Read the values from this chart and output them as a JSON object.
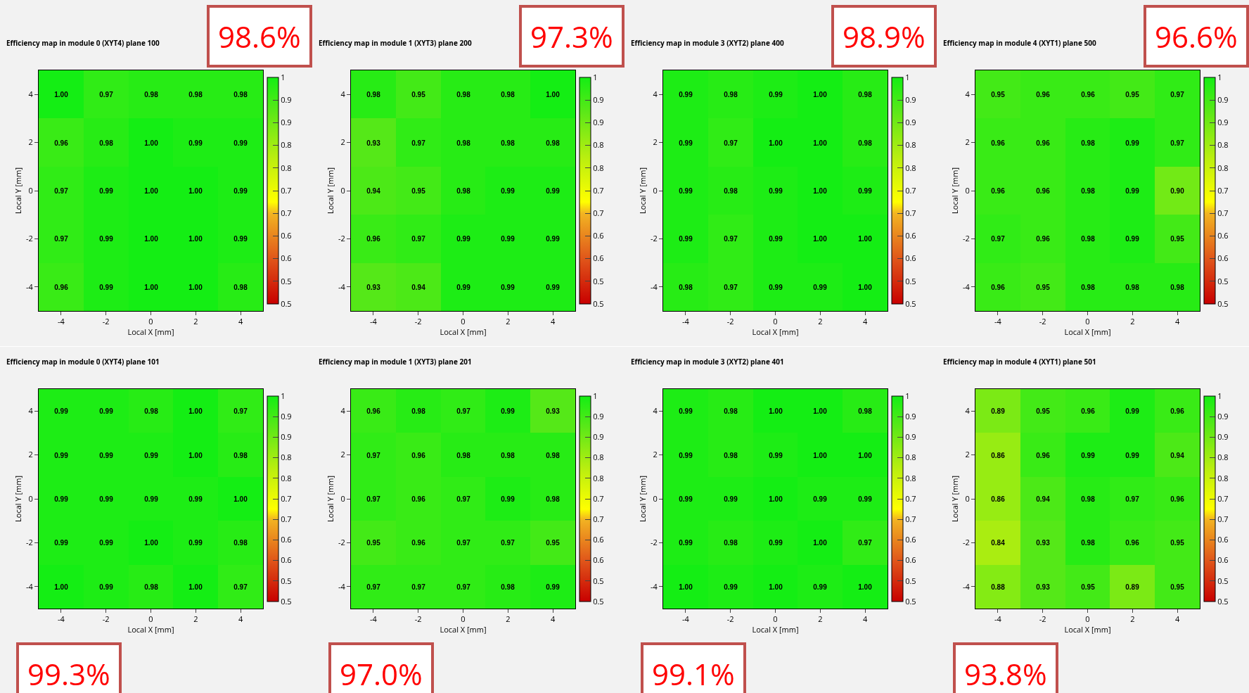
{
  "chart_data": [
    {
      "type": "heatmap",
      "title": "Efficiency map in module 0 (XYT4) plane 100",
      "xlabel": "Local X [mm]",
      "ylabel": "Local Y [mm]",
      "annotations": [
        "98.6%"
      ],
      "categories": [
        "-4",
        "-2",
        "0",
        "2",
        "4"
      ],
      "y_categories": [
        "4",
        "2",
        "0",
        "-2",
        "-4"
      ],
      "cells": [
        [
          1.0,
          0.97,
          0.98,
          0.98,
          0.98
        ],
        [
          0.96,
          0.98,
          1.0,
          0.99,
          0.99
        ],
        [
          0.97,
          0.99,
          1.0,
          1.0,
          0.99
        ],
        [
          0.97,
          0.99,
          1.0,
          1.0,
          0.99
        ],
        [
          0.96,
          0.99,
          1.0,
          1.0,
          0.98
        ]
      ],
      "cell_labels": [
        [
          "1.00",
          "0.97",
          "0.98",
          "0.98",
          "0.98"
        ],
        [
          "0.96",
          "0.98",
          "1.00",
          "0.99",
          "0.99"
        ],
        [
          "0.97",
          "0.99",
          "1.00",
          "1.00",
          "0.99"
        ],
        [
          "0.97",
          "0.99",
          "1.00",
          "1.00",
          "0.99"
        ],
        [
          "0.96",
          "0.99",
          "1.00",
          "1.00",
          "0.98"
        ]
      ],
      "clim": [
        0.5,
        1
      ],
      "cticks": [
        {
          "value": 0.5,
          "label": "0.5"
        },
        {
          "value": 0.55,
          "label": "0.5"
        },
        {
          "value": 0.6,
          "label": "0.6"
        },
        {
          "value": 0.65,
          "label": "0.6"
        },
        {
          "value": 0.7,
          "label": "0.7"
        },
        {
          "value": 0.75,
          "label": "0.7"
        },
        {
          "value": 0.8,
          "label": "0.8"
        },
        {
          "value": 0.85,
          "label": "0.8"
        },
        {
          "value": 0.9,
          "label": "0.9"
        },
        {
          "value": 0.95,
          "label": "0.9"
        },
        {
          "value": 1,
          "label": "1"
        }
      ]
    },
    {
      "type": "heatmap",
      "title": "Efficiency map in module 1 (XYT3) plane 200",
      "xlabel": "Local X [mm]",
      "ylabel": "Local Y [mm]",
      "annotations": [
        "97.3%"
      ],
      "categories": [
        "-4",
        "-2",
        "0",
        "2",
        "4"
      ],
      "y_categories": [
        "4",
        "2",
        "0",
        "-2",
        "-4"
      ],
      "cells": [
        [
          0.98,
          0.95,
          0.98,
          0.98,
          1.0
        ],
        [
          0.93,
          0.97,
          0.98,
          0.98,
          0.98
        ],
        [
          0.94,
          0.95,
          0.98,
          0.99,
          0.99
        ],
        [
          0.96,
          0.97,
          0.99,
          0.99,
          0.99
        ],
        [
          0.93,
          0.94,
          0.99,
          0.99,
          0.99
        ]
      ],
      "cell_labels": [
        [
          "0.98",
          "0.95",
          "0.98",
          "0.98",
          "1.00"
        ],
        [
          "0.93",
          "0.97",
          "0.98",
          "0.98",
          "0.98"
        ],
        [
          "0.94",
          "0.95",
          "0.98",
          "0.99",
          "0.99"
        ],
        [
          "0.96",
          "0.97",
          "0.99",
          "0.99",
          "0.99"
        ],
        [
          "0.93",
          "0.94",
          "0.99",
          "0.99",
          "0.99"
        ]
      ],
      "clim": [
        0.5,
        1
      ],
      "cticks": [
        {
          "value": 0.5,
          "label": "0.5"
        },
        {
          "value": 0.55,
          "label": "0.5"
        },
        {
          "value": 0.6,
          "label": "0.6"
        },
        {
          "value": 0.65,
          "label": "0.6"
        },
        {
          "value": 0.7,
          "label": "0.7"
        },
        {
          "value": 0.75,
          "label": "0.7"
        },
        {
          "value": 0.8,
          "label": "0.8"
        },
        {
          "value": 0.85,
          "label": "0.8"
        },
        {
          "value": 0.9,
          "label": "0.9"
        },
        {
          "value": 0.95,
          "label": "0.9"
        },
        {
          "value": 1,
          "label": "1"
        }
      ]
    },
    {
      "type": "heatmap",
      "title": "Efficiency map in module 3 (XYT2) plane 400",
      "xlabel": "Local X [mm]",
      "ylabel": "Local Y [mm]",
      "annotations": [
        "98.9%"
      ],
      "categories": [
        "-4",
        "-2",
        "0",
        "2",
        "4"
      ],
      "y_categories": [
        "4",
        "2",
        "0",
        "-2",
        "-4"
      ],
      "cells": [
        [
          0.99,
          0.98,
          0.99,
          1.0,
          0.98
        ],
        [
          0.99,
          0.97,
          1.0,
          1.0,
          0.98
        ],
        [
          0.99,
          0.98,
          0.99,
          1.0,
          0.99
        ],
        [
          0.99,
          0.97,
          0.99,
          1.0,
          1.0
        ],
        [
          0.98,
          0.97,
          0.99,
          0.99,
          1.0
        ]
      ],
      "cell_labels": [
        [
          "0.99",
          "0.98",
          "0.99",
          "1.00",
          "0.98"
        ],
        [
          "0.99",
          "0.97",
          "1.00",
          "1.00",
          "0.98"
        ],
        [
          "0.99",
          "0.98",
          "0.99",
          "1.00",
          "0.99"
        ],
        [
          "0.99",
          "0.97",
          "0.99",
          "1.00",
          "1.00"
        ],
        [
          "0.98",
          "0.97",
          "0.99",
          "0.99",
          "1.00"
        ]
      ],
      "clim": [
        0.5,
        1
      ],
      "cticks": [
        {
          "value": 0.5,
          "label": "0.5"
        },
        {
          "value": 0.55,
          "label": "0.5"
        },
        {
          "value": 0.6,
          "label": "0.6"
        },
        {
          "value": 0.65,
          "label": "0.6"
        },
        {
          "value": 0.7,
          "label": "0.7"
        },
        {
          "value": 0.75,
          "label": "0.7"
        },
        {
          "value": 0.8,
          "label": "0.8"
        },
        {
          "value": 0.85,
          "label": "0.8"
        },
        {
          "value": 0.9,
          "label": "0.9"
        },
        {
          "value": 0.95,
          "label": "0.9"
        },
        {
          "value": 1,
          "label": "1"
        }
      ]
    },
    {
      "type": "heatmap",
      "title": "Efficiency map in module 4 (XYT1) plane 500",
      "xlabel": "Local X [mm]",
      "ylabel": "Local Y [mm]",
      "annotations": [
        "96.6%"
      ],
      "categories": [
        "-4",
        "-2",
        "0",
        "2",
        "4"
      ],
      "y_categories": [
        "4",
        "2",
        "0",
        "-2",
        "-4"
      ],
      "cells": [
        [
          0.95,
          0.96,
          0.96,
          0.95,
          0.97
        ],
        [
          0.96,
          0.96,
          0.98,
          0.99,
          0.97
        ],
        [
          0.96,
          0.96,
          0.98,
          0.99,
          0.9
        ],
        [
          0.97,
          0.96,
          0.98,
          0.99,
          0.95
        ],
        [
          0.96,
          0.95,
          0.98,
          0.98,
          0.98
        ]
      ],
      "cell_labels": [
        [
          "0.95",
          "0.96",
          "0.96",
          "0.95",
          "0.97"
        ],
        [
          "0.96",
          "0.96",
          "0.98",
          "0.99",
          "0.97"
        ],
        [
          "0.96",
          "0.96",
          "0.98",
          "0.99",
          "0.90"
        ],
        [
          "0.97",
          "0.96",
          "0.98",
          "0.99",
          "0.95"
        ],
        [
          "0.96",
          "0.95",
          "0.98",
          "0.98",
          "0.98"
        ]
      ],
      "clim": [
        0.5,
        1
      ],
      "cticks": [
        {
          "value": 0.5,
          "label": "0.5"
        },
        {
          "value": 0.55,
          "label": "0.5"
        },
        {
          "value": 0.6,
          "label": "0.6"
        },
        {
          "value": 0.65,
          "label": "0.6"
        },
        {
          "value": 0.7,
          "label": "0.7"
        },
        {
          "value": 0.75,
          "label": "0.7"
        },
        {
          "value": 0.8,
          "label": "0.8"
        },
        {
          "value": 0.85,
          "label": "0.8"
        },
        {
          "value": 0.9,
          "label": "0.9"
        },
        {
          "value": 0.95,
          "label": "0.9"
        },
        {
          "value": 1,
          "label": "1"
        }
      ]
    },
    {
      "type": "heatmap",
      "title": "Efficiency map in module 0 (XYT4) plane 101",
      "xlabel": "Local X [mm]",
      "ylabel": "Local Y [mm]",
      "annotations": [
        "99.3%"
      ],
      "categories": [
        "-4",
        "-2",
        "0",
        "2",
        "4"
      ],
      "y_categories": [
        "4",
        "2",
        "0",
        "-2",
        "-4"
      ],
      "cells": [
        [
          0.99,
          0.99,
          0.98,
          1.0,
          0.97
        ],
        [
          0.99,
          0.99,
          0.99,
          1.0,
          0.98
        ],
        [
          0.99,
          0.99,
          0.99,
          0.99,
          1.0
        ],
        [
          0.99,
          0.99,
          1.0,
          0.99,
          0.98
        ],
        [
          1.0,
          0.99,
          0.98,
          1.0,
          0.97
        ]
      ],
      "cell_labels": [
        [
          "0.99",
          "0.99",
          "0.98",
          "1.00",
          "0.97"
        ],
        [
          "0.99",
          "0.99",
          "0.99",
          "1.00",
          "0.98"
        ],
        [
          "0.99",
          "0.99",
          "0.99",
          "0.99",
          "1.00"
        ],
        [
          "0.99",
          "0.99",
          "1.00",
          "0.99",
          "0.98"
        ],
        [
          "1.00",
          "0.99",
          "0.98",
          "1.00",
          "0.97"
        ]
      ],
      "clim": [
        0.5,
        1
      ],
      "cticks": [
        {
          "value": 0.5,
          "label": "0.5"
        },
        {
          "value": 0.55,
          "label": "0.5"
        },
        {
          "value": 0.6,
          "label": "0.6"
        },
        {
          "value": 0.65,
          "label": "0.6"
        },
        {
          "value": 0.7,
          "label": "0.7"
        },
        {
          "value": 0.75,
          "label": "0.7"
        },
        {
          "value": 0.8,
          "label": "0.8"
        },
        {
          "value": 0.85,
          "label": "0.8"
        },
        {
          "value": 0.9,
          "label": "0.9"
        },
        {
          "value": 0.95,
          "label": "0.9"
        },
        {
          "value": 1,
          "label": "1"
        }
      ]
    },
    {
      "type": "heatmap",
      "title": "Efficiency map in module 1 (XYT3) plane 201",
      "xlabel": "Local X [mm]",
      "ylabel": "Local Y [mm]",
      "annotations": [
        "97.0%"
      ],
      "categories": [
        "-4",
        "-2",
        "0",
        "2",
        "4"
      ],
      "y_categories": [
        "4",
        "2",
        "0",
        "-2",
        "-4"
      ],
      "cells": [
        [
          0.96,
          0.98,
          0.97,
          0.99,
          0.93
        ],
        [
          0.97,
          0.96,
          0.98,
          0.98,
          0.98
        ],
        [
          0.97,
          0.96,
          0.97,
          0.99,
          0.98
        ],
        [
          0.95,
          0.96,
          0.97,
          0.97,
          0.95
        ],
        [
          0.97,
          0.97,
          0.97,
          0.98,
          0.99
        ]
      ],
      "cell_labels": [
        [
          "0.96",
          "0.98",
          "0.97",
          "0.99",
          "0.93"
        ],
        [
          "0.97",
          "0.96",
          "0.98",
          "0.98",
          "0.98"
        ],
        [
          "0.97",
          "0.96",
          "0.97",
          "0.99",
          "0.98"
        ],
        [
          "0.95",
          "0.96",
          "0.97",
          "0.97",
          "0.95"
        ],
        [
          "0.97",
          "0.97",
          "0.97",
          "0.98",
          "0.99"
        ]
      ],
      "clim": [
        0.5,
        1
      ],
      "cticks": [
        {
          "value": 0.5,
          "label": "0.5"
        },
        {
          "value": 0.55,
          "label": "0.5"
        },
        {
          "value": 0.6,
          "label": "0.6"
        },
        {
          "value": 0.65,
          "label": "0.6"
        },
        {
          "value": 0.7,
          "label": "0.7"
        },
        {
          "value": 0.75,
          "label": "0.7"
        },
        {
          "value": 0.8,
          "label": "0.8"
        },
        {
          "value": 0.85,
          "label": "0.8"
        },
        {
          "value": 0.9,
          "label": "0.9"
        },
        {
          "value": 0.95,
          "label": "0.9"
        },
        {
          "value": 1,
          "label": "1"
        }
      ]
    },
    {
      "type": "heatmap",
      "title": "Efficiency map in module 3 (XYT2) plane 401",
      "xlabel": "Local X [mm]",
      "ylabel": "Local Y [mm]",
      "annotations": [
        "99.1%"
      ],
      "categories": [
        "-4",
        "-2",
        "0",
        "2",
        "4"
      ],
      "y_categories": [
        "4",
        "2",
        "0",
        "-2",
        "-4"
      ],
      "cells": [
        [
          0.99,
          0.98,
          1.0,
          1.0,
          0.98
        ],
        [
          0.99,
          0.98,
          0.99,
          1.0,
          1.0
        ],
        [
          0.99,
          0.99,
          1.0,
          0.99,
          0.99
        ],
        [
          0.99,
          0.98,
          0.99,
          1.0,
          0.97
        ],
        [
          1.0,
          0.99,
          1.0,
          0.99,
          1.0
        ]
      ],
      "cell_labels": [
        [
          "0.99",
          "0.98",
          "1.00",
          "1.00",
          "0.98"
        ],
        [
          "0.99",
          "0.98",
          "0.99",
          "1.00",
          "1.00"
        ],
        [
          "0.99",
          "0.99",
          "1.00",
          "0.99",
          "0.99"
        ],
        [
          "0.99",
          "0.98",
          "0.99",
          "1.00",
          "0.97"
        ],
        [
          "1.00",
          "0.99",
          "1.00",
          "0.99",
          "1.00"
        ]
      ],
      "clim": [
        0.5,
        1
      ],
      "cticks": [
        {
          "value": 0.5,
          "label": "0.5"
        },
        {
          "value": 0.55,
          "label": "0.5"
        },
        {
          "value": 0.6,
          "label": "0.6"
        },
        {
          "value": 0.65,
          "label": "0.6"
        },
        {
          "value": 0.7,
          "label": "0.7"
        },
        {
          "value": 0.75,
          "label": "0.7"
        },
        {
          "value": 0.8,
          "label": "0.8"
        },
        {
          "value": 0.85,
          "label": "0.8"
        },
        {
          "value": 0.9,
          "label": "0.9"
        },
        {
          "value": 0.95,
          "label": "0.9"
        },
        {
          "value": 1,
          "label": "1"
        }
      ]
    },
    {
      "type": "heatmap",
      "title": "Efficiency map in module 4 (XYT1) plane 501",
      "xlabel": "Local X [mm]",
      "ylabel": "Local Y [mm]",
      "annotations": [
        "93.8%"
      ],
      "categories": [
        "-4",
        "-2",
        "0",
        "2",
        "4"
      ],
      "y_categories": [
        "4",
        "2",
        "0",
        "-2",
        "-4"
      ],
      "cells": [
        [
          0.89,
          0.95,
          0.96,
          0.99,
          0.96
        ],
        [
          0.86,
          0.96,
          0.99,
          0.99,
          0.94
        ],
        [
          0.86,
          0.94,
          0.98,
          0.97,
          0.96
        ],
        [
          0.84,
          0.93,
          0.98,
          0.96,
          0.95
        ],
        [
          0.88,
          0.93,
          0.95,
          0.89,
          0.95
        ]
      ],
      "cell_labels": [
        [
          "0.89",
          "0.95",
          "0.96",
          "0.99",
          "0.96"
        ],
        [
          "0.86",
          "0.96",
          "0.99",
          "0.99",
          "0.94"
        ],
        [
          "0.86",
          "0.94",
          "0.98",
          "0.97",
          "0.96"
        ],
        [
          "0.84",
          "0.93",
          "0.98",
          "0.96",
          "0.95"
        ],
        [
          "0.88",
          "0.93",
          "0.95",
          "0.89",
          "0.95"
        ]
      ],
      "clim": [
        0.5,
        1
      ],
      "cticks": [
        {
          "value": 0.5,
          "label": "0.5"
        },
        {
          "value": 0.55,
          "label": "0.5"
        },
        {
          "value": 0.6,
          "label": "0.6"
        },
        {
          "value": 0.65,
          "label": "0.6"
        },
        {
          "value": 0.7,
          "label": "0.7"
        },
        {
          "value": 0.75,
          "label": "0.7"
        },
        {
          "value": 0.8,
          "label": "0.8"
        },
        {
          "value": 0.85,
          "label": "0.8"
        },
        {
          "value": 0.9,
          "label": "0.9"
        },
        {
          "value": 0.95,
          "label": "0.9"
        },
        {
          "value": 1,
          "label": "1"
        }
      ]
    }
  ]
}
